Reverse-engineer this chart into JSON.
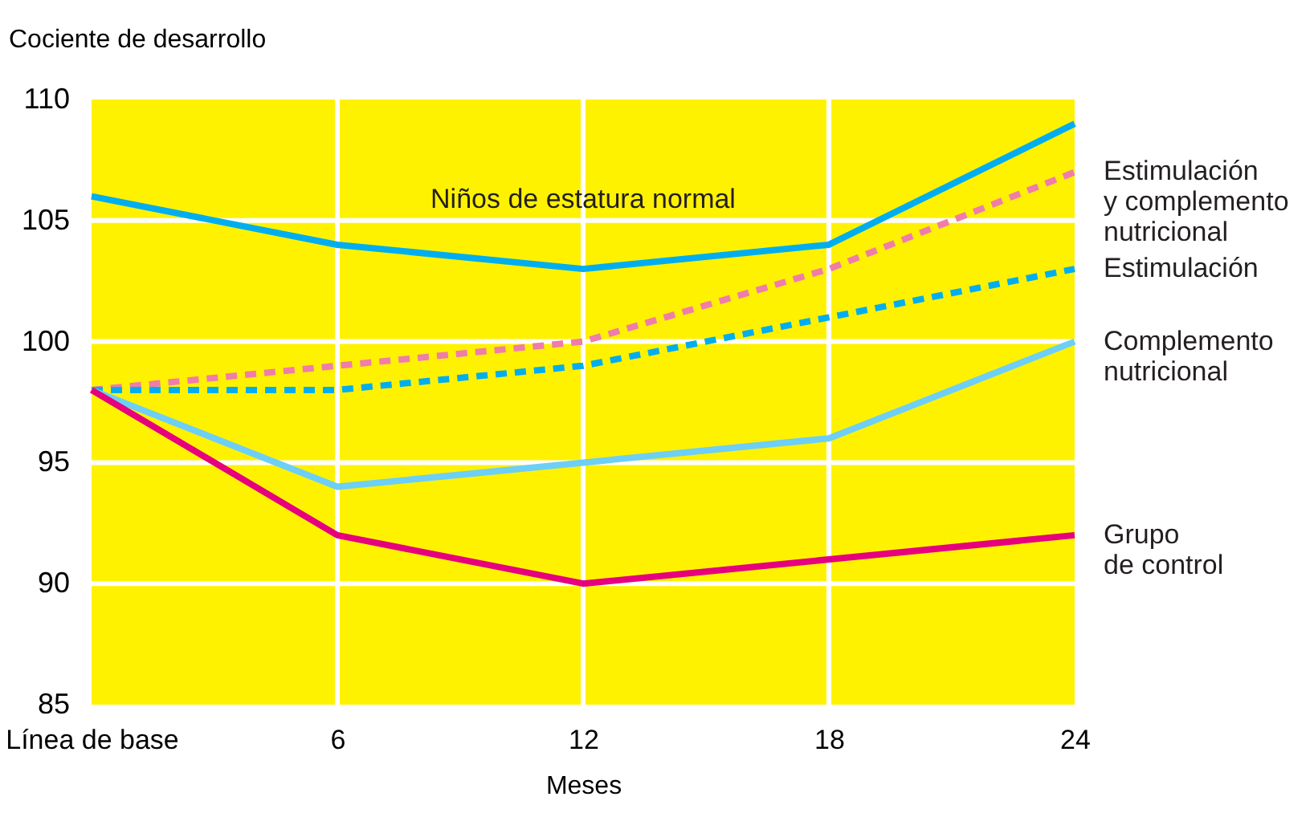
{
  "chart_data": {
    "type": "line",
    "ylabel": "Cociente de desarrollo",
    "xlabel": "Meses",
    "categories": [
      "Línea de base",
      "6",
      "12",
      "18",
      "24"
    ],
    "series": [
      {
        "color": "#00aeef",
        "line_style": "solid",
        "values": [
          106,
          104,
          103,
          104,
          109
        ]
      },
      {
        "name": "Estimulación\ny complemento\nnutricional",
        "color": "#f07caa",
        "line_style": "dashed",
        "values": [
          98,
          99,
          100,
          103,
          107
        ]
      },
      {
        "name": "Estimulación",
        "color": "#00aeef",
        "line_style": "dashed",
        "values": [
          98,
          98,
          99,
          101,
          103
        ]
      },
      {
        "name": "Complemento\nnutricional",
        "color": "#6dcff6",
        "line_style": "solid",
        "values": [
          98,
          94,
          95,
          96,
          100
        ]
      },
      {
        "name": "Grupo\nde control",
        "color": "#e6007e",
        "line_style": "solid",
        "values": [
          98,
          92,
          90,
          91,
          92
        ]
      }
    ],
    "annotations": [
      "Niños de estatura normal"
    ],
    "ylim": [
      85,
      110
    ],
    "yticks": [
      85,
      90,
      95,
      100,
      105,
      110
    ],
    "grid": true,
    "legend": false,
    "marker": "none"
  }
}
